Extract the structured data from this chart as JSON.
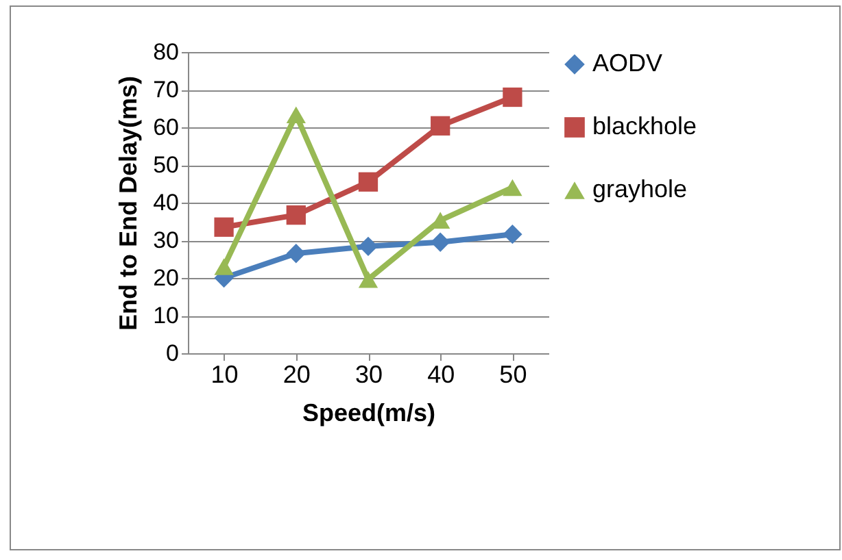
{
  "chart_data": {
    "type": "line",
    "xlabel": "Speed(m/s)",
    "ylabel": "End to End Delay(ms)",
    "categories": [
      "10",
      "20",
      "30",
      "40",
      "50"
    ],
    "series": [
      {
        "name": "AODV",
        "color": "#4a7ebb",
        "marker": "diamond",
        "values": [
          20,
          26.5,
          28.4,
          29.5,
          31.6
        ]
      },
      {
        "name": "blackhole",
        "color": "#be4b48",
        "marker": "square",
        "values": [
          33.5,
          36.7,
          45.5,
          60.4,
          68
        ]
      },
      {
        "name": "grayhole",
        "color": "#98b954",
        "marker": "triangle",
        "values": [
          23,
          63.3,
          19.6,
          35.3,
          44
        ]
      }
    ],
    "ylim": [
      0,
      80
    ],
    "yticks": [
      0,
      10,
      20,
      30,
      40,
      50,
      60,
      70,
      80
    ],
    "grid": "y",
    "legend": "right"
  }
}
